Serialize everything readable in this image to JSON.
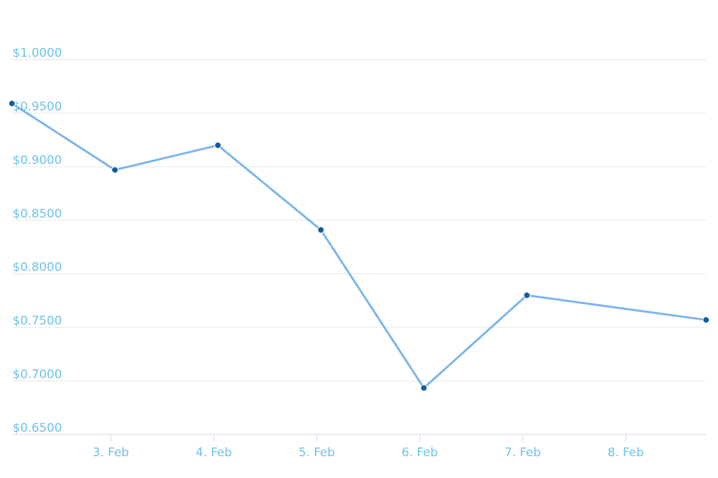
{
  "chart_data": {
    "type": "line",
    "x": [
      2.04,
      3.04,
      4.04,
      5.04,
      6.04,
      7.04,
      8.78
    ],
    "series": [
      {
        "color": "#7cb5ec",
        "marker_color": "#135d9f",
        "values": [
          0.959,
          0.897,
          0.92,
          0.841,
          0.6935,
          0.78,
          0.757
        ]
      }
    ],
    "xlim": [
      2.04,
      8.78
    ],
    "xticks": [
      {
        "value": 3,
        "label": "3. Feb"
      },
      {
        "value": 4,
        "label": "4. Feb"
      },
      {
        "value": 5,
        "label": "5. Feb"
      },
      {
        "value": 6,
        "label": "6. Feb"
      },
      {
        "value": 7,
        "label": "7. Feb"
      },
      {
        "value": 8,
        "label": "8. Feb"
      }
    ],
    "ylim": [
      0.65,
      1.0
    ],
    "yticks": [
      {
        "value": 0.65,
        "label": "$0.6500"
      },
      {
        "value": 0.7,
        "label": "$0.7000"
      },
      {
        "value": 0.75,
        "label": "$0.7500"
      },
      {
        "value": 0.8,
        "label": "$0.8000"
      },
      {
        "value": 0.85,
        "label": "$0.8500"
      },
      {
        "value": 0.9,
        "label": "$0.9000"
      },
      {
        "value": 0.95,
        "label": "$0.9500"
      },
      {
        "value": 1.0,
        "label": "$1.0000"
      }
    ],
    "grid": true
  }
}
